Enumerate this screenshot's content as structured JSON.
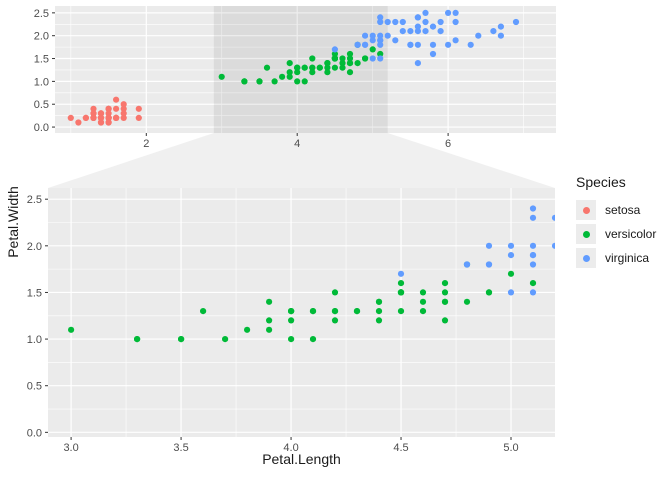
{
  "figure": {
    "background": "#ffffff",
    "panel_bg": "#ebebeb",
    "grid_color": "#ffffff",
    "zoom_overlay": "rgba(0,0,0,0.065)",
    "connector_fill": "rgba(0,0,0,0.06)",
    "tick_mark_color": "#333333",
    "tick_label_color": "#4d4d4d",
    "axis_title_color": "#1a1a1a"
  },
  "legend": {
    "title": "Species",
    "entries": [
      {
        "label": "setosa"
      },
      {
        "label": "versicolor"
      },
      {
        "label": "virginica"
      }
    ]
  },
  "chart_data": {
    "type": "scatter",
    "title": "",
    "xlabel": "Petal.Length",
    "ylabel": "Petal.Width",
    "legend_position": "right",
    "grid": true,
    "panels": {
      "overview": {
        "xlim": [
          0.79,
          7.43
        ],
        "ylim": [
          -0.13,
          2.65
        ],
        "xticks": [
          "2",
          "4",
          "6"
        ],
        "yticks": [
          "0.0",
          "0.5",
          "1.0",
          "1.5",
          "2.0",
          "2.5"
        ],
        "xminor": [
          1,
          3,
          5,
          7
        ],
        "yminor": [
          0.25,
          0.75,
          1.25,
          1.75,
          2.25
        ]
      },
      "zoom": {
        "xlim": [
          2.895,
          5.2
        ],
        "ylim": [
          -0.05,
          2.62
        ],
        "xticks": [
          "3.0",
          "3.5",
          "4.0",
          "4.5",
          "5.0"
        ],
        "yticks": [
          "0.0",
          "0.5",
          "1.0",
          "1.5",
          "2.0",
          "2.5"
        ],
        "xminor": [
          3.25,
          3.75,
          4.25,
          4.75
        ],
        "yminor": [
          0.25,
          0.75,
          1.25,
          1.75,
          2.25
        ]
      }
    },
    "series": [
      {
        "name": "setosa",
        "color": "#f8766d",
        "points": [
          [
            1.4,
            0.2
          ],
          [
            1.4,
            0.2
          ],
          [
            1.3,
            0.2
          ],
          [
            1.5,
            0.2
          ],
          [
            1.4,
            0.2
          ],
          [
            1.7,
            0.4
          ],
          [
            1.4,
            0.3
          ],
          [
            1.5,
            0.2
          ],
          [
            1.4,
            0.2
          ],
          [
            1.5,
            0.1
          ],
          [
            1.5,
            0.2
          ],
          [
            1.6,
            0.2
          ],
          [
            1.4,
            0.1
          ],
          [
            1.1,
            0.1
          ],
          [
            1.2,
            0.2
          ],
          [
            1.5,
            0.4
          ],
          [
            1.3,
            0.4
          ],
          [
            1.4,
            0.3
          ],
          [
            1.7,
            0.3
          ],
          [
            1.5,
            0.3
          ],
          [
            1.7,
            0.2
          ],
          [
            1.5,
            0.4
          ],
          [
            1.0,
            0.2
          ],
          [
            1.7,
            0.5
          ],
          [
            1.9,
            0.2
          ],
          [
            1.6,
            0.2
          ],
          [
            1.6,
            0.4
          ],
          [
            1.5,
            0.2
          ],
          [
            1.4,
            0.2
          ],
          [
            1.6,
            0.2
          ],
          [
            1.6,
            0.2
          ],
          [
            1.5,
            0.4
          ],
          [
            1.5,
            0.1
          ],
          [
            1.4,
            0.2
          ],
          [
            1.5,
            0.2
          ],
          [
            1.2,
            0.2
          ],
          [
            1.3,
            0.2
          ],
          [
            1.4,
            0.1
          ],
          [
            1.3,
            0.2
          ],
          [
            1.5,
            0.2
          ],
          [
            1.3,
            0.3
          ],
          [
            1.3,
            0.3
          ],
          [
            1.3,
            0.2
          ],
          [
            1.6,
            0.6
          ],
          [
            1.9,
            0.4
          ],
          [
            1.4,
            0.3
          ],
          [
            1.6,
            0.2
          ],
          [
            1.4,
            0.2
          ],
          [
            1.5,
            0.2
          ],
          [
            1.4,
            0.2
          ]
        ]
      },
      {
        "name": "versicolor",
        "color": "#00ba38",
        "points": [
          [
            4.7,
            1.4
          ],
          [
            4.5,
            1.5
          ],
          [
            4.9,
            1.5
          ],
          [
            4.0,
            1.3
          ],
          [
            4.6,
            1.5
          ],
          [
            4.5,
            1.3
          ],
          [
            4.7,
            1.6
          ],
          [
            3.3,
            1.0
          ],
          [
            4.6,
            1.3
          ],
          [
            3.9,
            1.4
          ],
          [
            3.5,
            1.0
          ],
          [
            4.2,
            1.5
          ],
          [
            4.0,
            1.0
          ],
          [
            4.7,
            1.4
          ],
          [
            3.6,
            1.3
          ],
          [
            4.4,
            1.4
          ],
          [
            4.5,
            1.5
          ],
          [
            4.1,
            1.0
          ],
          [
            4.5,
            1.5
          ],
          [
            3.9,
            1.1
          ],
          [
            4.8,
            1.8
          ],
          [
            4.0,
            1.3
          ],
          [
            4.9,
            1.5
          ],
          [
            4.7,
            1.2
          ],
          [
            4.3,
            1.3
          ],
          [
            4.4,
            1.4
          ],
          [
            4.8,
            1.4
          ],
          [
            5.0,
            1.7
          ],
          [
            4.5,
            1.5
          ],
          [
            3.5,
            1.0
          ],
          [
            3.8,
            1.1
          ],
          [
            3.7,
            1.0
          ],
          [
            3.9,
            1.2
          ],
          [
            5.1,
            1.6
          ],
          [
            4.5,
            1.5
          ],
          [
            4.5,
            1.6
          ],
          [
            4.7,
            1.5
          ],
          [
            4.4,
            1.3
          ],
          [
            4.1,
            1.3
          ],
          [
            4.0,
            1.3
          ],
          [
            4.4,
            1.2
          ],
          [
            4.6,
            1.4
          ],
          [
            4.0,
            1.2
          ],
          [
            3.3,
            1.0
          ],
          [
            4.2,
            1.3
          ],
          [
            4.2,
            1.2
          ],
          [
            4.2,
            1.3
          ],
          [
            4.3,
            1.3
          ],
          [
            3.0,
            1.1
          ],
          [
            4.1,
            1.3
          ]
        ]
      },
      {
        "name": "virginica",
        "color": "#619cff",
        "points": [
          [
            6.0,
            2.5
          ],
          [
            5.1,
            1.9
          ],
          [
            5.9,
            2.1
          ],
          [
            5.6,
            1.8
          ],
          [
            5.8,
            2.2
          ],
          [
            6.6,
            2.1
          ],
          [
            4.5,
            1.7
          ],
          [
            6.3,
            1.8
          ],
          [
            5.8,
            1.8
          ],
          [
            6.1,
            2.5
          ],
          [
            5.1,
            2.0
          ],
          [
            5.3,
            1.9
          ],
          [
            5.5,
            2.1
          ],
          [
            5.0,
            2.0
          ],
          [
            5.1,
            2.4
          ],
          [
            5.3,
            2.3
          ],
          [
            5.5,
            1.8
          ],
          [
            6.7,
            2.2
          ],
          [
            6.9,
            2.3
          ],
          [
            5.0,
            1.5
          ],
          [
            5.7,
            2.3
          ],
          [
            4.9,
            2.0
          ],
          [
            6.7,
            2.0
          ],
          [
            4.9,
            1.8
          ],
          [
            5.7,
            2.1
          ],
          [
            6.0,
            1.8
          ],
          [
            4.8,
            1.8
          ],
          [
            4.9,
            1.8
          ],
          [
            5.6,
            2.1
          ],
          [
            5.8,
            1.6
          ],
          [
            6.1,
            1.9
          ],
          [
            6.4,
            2.0
          ],
          [
            5.6,
            2.2
          ],
          [
            5.1,
            1.5
          ],
          [
            5.6,
            1.4
          ],
          [
            6.1,
            2.3
          ],
          [
            5.6,
            2.4
          ],
          [
            5.5,
            1.8
          ],
          [
            4.8,
            1.8
          ],
          [
            5.4,
            2.1
          ],
          [
            5.6,
            2.4
          ],
          [
            5.1,
            2.3
          ],
          [
            5.1,
            1.9
          ],
          [
            5.9,
            2.3
          ],
          [
            5.7,
            2.5
          ],
          [
            5.2,
            2.3
          ],
          [
            5.0,
            1.9
          ],
          [
            5.2,
            2.0
          ],
          [
            5.4,
            2.3
          ],
          [
            5.1,
            1.8
          ]
        ]
      }
    ]
  }
}
